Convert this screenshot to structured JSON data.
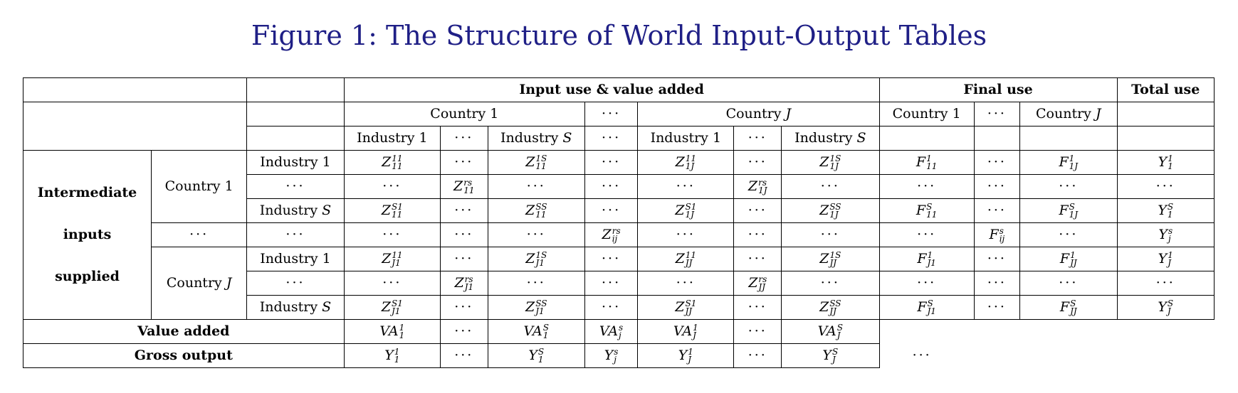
{
  "title": "Figure 1: The Structure of World Input-Output Tables",
  "dots": "···",
  "headers": {
    "input_use": "Input use & value added",
    "final_use": "Final use",
    "total_use": "Total use",
    "country_1": "Country 1",
    "country_J_word": "Country",
    "J": "J",
    "industry_word": "Industry",
    "industry_1": "Industry 1",
    "S": "S"
  },
  "stub": {
    "line1": "Intermediate",
    "line2": "inputs",
    "line3": "supplied",
    "value_added": "Value added",
    "gross_output": "Gross output"
  },
  "matrix": {
    "r1": [
      [
        "Z",
        "11",
        "11"
      ],
      null,
      [
        "Z",
        "1S",
        "11"
      ],
      null,
      [
        "Z",
        "11",
        "1J"
      ],
      null,
      [
        "Z",
        "1S",
        "1J"
      ],
      [
        "F",
        "1",
        "11"
      ],
      null,
      [
        "F",
        "1",
        "1J"
      ],
      [
        "Y",
        "1",
        "1"
      ]
    ],
    "r2": [
      null,
      [
        "Z",
        "rs",
        "11"
      ],
      null,
      null,
      null,
      [
        "Z",
        "rs",
        "1J"
      ],
      null,
      null,
      null,
      null,
      null
    ],
    "r3": [
      [
        "Z",
        "S1",
        "11"
      ],
      null,
      [
        "Z",
        "SS",
        "11"
      ],
      null,
      [
        "Z",
        "S1",
        "1J"
      ],
      null,
      [
        "Z",
        "SS",
        "1J"
      ],
      [
        "F",
        "S",
        "11"
      ],
      null,
      [
        "F",
        "S",
        "1J"
      ],
      [
        "Y",
        "S",
        "1"
      ]
    ],
    "r4": [
      null,
      null,
      null,
      [
        "Z",
        "rs",
        "ij"
      ],
      null,
      null,
      null,
      null,
      [
        "F",
        "s",
        "ij"
      ],
      null,
      [
        "Y",
        "s",
        "j"
      ]
    ],
    "r5": [
      [
        "Z",
        "11",
        "J1"
      ],
      null,
      [
        "Z",
        "1S",
        "J1"
      ],
      null,
      [
        "Z",
        "11",
        "JJ"
      ],
      null,
      [
        "Z",
        "1S",
        "JJ"
      ],
      [
        "F",
        "1",
        "J1"
      ],
      null,
      [
        "F",
        "1",
        "JJ"
      ],
      [
        "Y",
        "1",
        "J"
      ]
    ],
    "r6": [
      null,
      [
        "Z",
        "rs",
        "J1"
      ],
      null,
      null,
      null,
      [
        "Z",
        "rs",
        "JJ"
      ],
      null,
      null,
      null,
      null,
      null
    ],
    "r7": [
      [
        "Z",
        "S1",
        "J1"
      ],
      null,
      [
        "Z",
        "SS",
        "J1"
      ],
      null,
      [
        "Z",
        "S1",
        "JJ"
      ],
      null,
      [
        "Z",
        "SS",
        "JJ"
      ],
      [
        "F",
        "S",
        "J1"
      ],
      null,
      [
        "F",
        "S",
        "JJ"
      ],
      [
        "Y",
        "S",
        "J"
      ]
    ],
    "va": [
      [
        "VA",
        "1",
        "1"
      ],
      null,
      [
        "VA",
        "S",
        "1"
      ],
      [
        "VA",
        "s",
        "j"
      ],
      [
        "VA",
        "1",
        "J"
      ],
      null,
      [
        "VA",
        "S",
        "J"
      ]
    ],
    "go": [
      [
        "Y",
        "1",
        "1"
      ],
      null,
      [
        "Y",
        "S",
        "1"
      ],
      [
        "Y",
        "s",
        "j"
      ],
      [
        "Y",
        "1",
        "J"
      ],
      null,
      [
        "Y",
        "S",
        "J"
      ]
    ]
  },
  "trailing_dots": "···",
  "colors": {
    "title": "#1f1f86",
    "border": "#000000"
  }
}
